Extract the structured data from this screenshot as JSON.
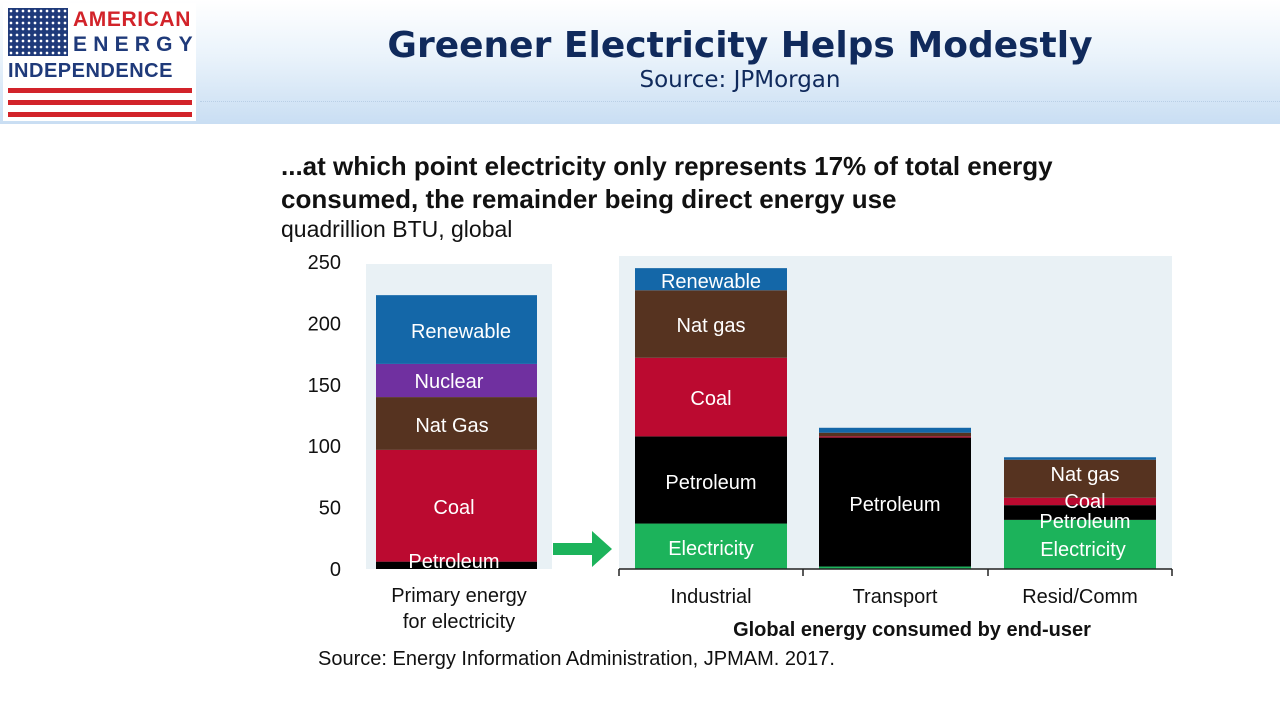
{
  "header": {
    "logo": {
      "line1": "AMERICAN",
      "line2": "ENERGY",
      "line3": "INDEPENDENCE",
      "colors": {
        "red": "#d2232a",
        "blue": "#1f3a7a"
      },
      "flag_icon": "us-flag-icon"
    },
    "title": "Greener Electricity Helps Modestly",
    "subtitle": "Source: JPMorgan"
  },
  "chart": {
    "heading": "...at which point electricity only represents 17% of total energy consumed, the remainder being direct energy use",
    "unit": "quadrillion BTU, global",
    "source": "Source: Energy Information Administration, JPMAM. 2017.",
    "arrow_icon": "right-arrow-icon"
  },
  "chart_data": {
    "type": "bar",
    "stacked": true,
    "ylim": [
      0,
      250
    ],
    "yticks": [
      0,
      50,
      100,
      150,
      200,
      250
    ],
    "grid": false,
    "legend": "none",
    "colors": {
      "Petroleum": "#000000",
      "Coal": "#bb0a30",
      "Nat Gas": "#563320",
      "Nuclear": "#7030a0",
      "Renewable": "#1467a8",
      "Electricity": "#1cb35b",
      "Nat gas": "#563320"
    },
    "panels": [
      {
        "name": "primary",
        "categories": [
          "Primary energy\nfor electricity"
        ],
        "stacks": [
          [
            {
              "label": "Petroleum",
              "value": 6
            },
            {
              "label": "Coal",
              "value": 91
            },
            {
              "label": "Nat Gas",
              "value": 43
            },
            {
              "label": "Nuclear",
              "value": 27
            },
            {
              "label": "Renewable",
              "value": 56
            }
          ]
        ]
      },
      {
        "name": "end-user",
        "xlabel": "Global energy consumed by end-user",
        "categories": [
          "Industrial",
          "Transport",
          "Resid/Comm"
        ],
        "stacks": [
          [
            {
              "label": "Electricity",
              "value": 37
            },
            {
              "label": "Petroleum",
              "value": 71
            },
            {
              "label": "Coal",
              "value": 64
            },
            {
              "label": "Nat gas",
              "value": 55
            },
            {
              "label": "Renewable",
              "value": 18
            }
          ],
          [
            {
              "label": "Electricity",
              "value": 2
            },
            {
              "label": "Petroleum",
              "value": 105
            },
            {
              "label": "Coal",
              "value": 1
            },
            {
              "label": "Nat gas",
              "value": 3
            },
            {
              "label": "Renewable",
              "value": 4
            }
          ],
          [
            {
              "label": "Electricity",
              "value": 40
            },
            {
              "label": "Petroleum",
              "value": 12
            },
            {
              "label": "Coal",
              "value": 6
            },
            {
              "label": "Nat gas",
              "value": 31
            },
            {
              "label": "Renewable",
              "value": 2
            }
          ]
        ]
      }
    ]
  }
}
